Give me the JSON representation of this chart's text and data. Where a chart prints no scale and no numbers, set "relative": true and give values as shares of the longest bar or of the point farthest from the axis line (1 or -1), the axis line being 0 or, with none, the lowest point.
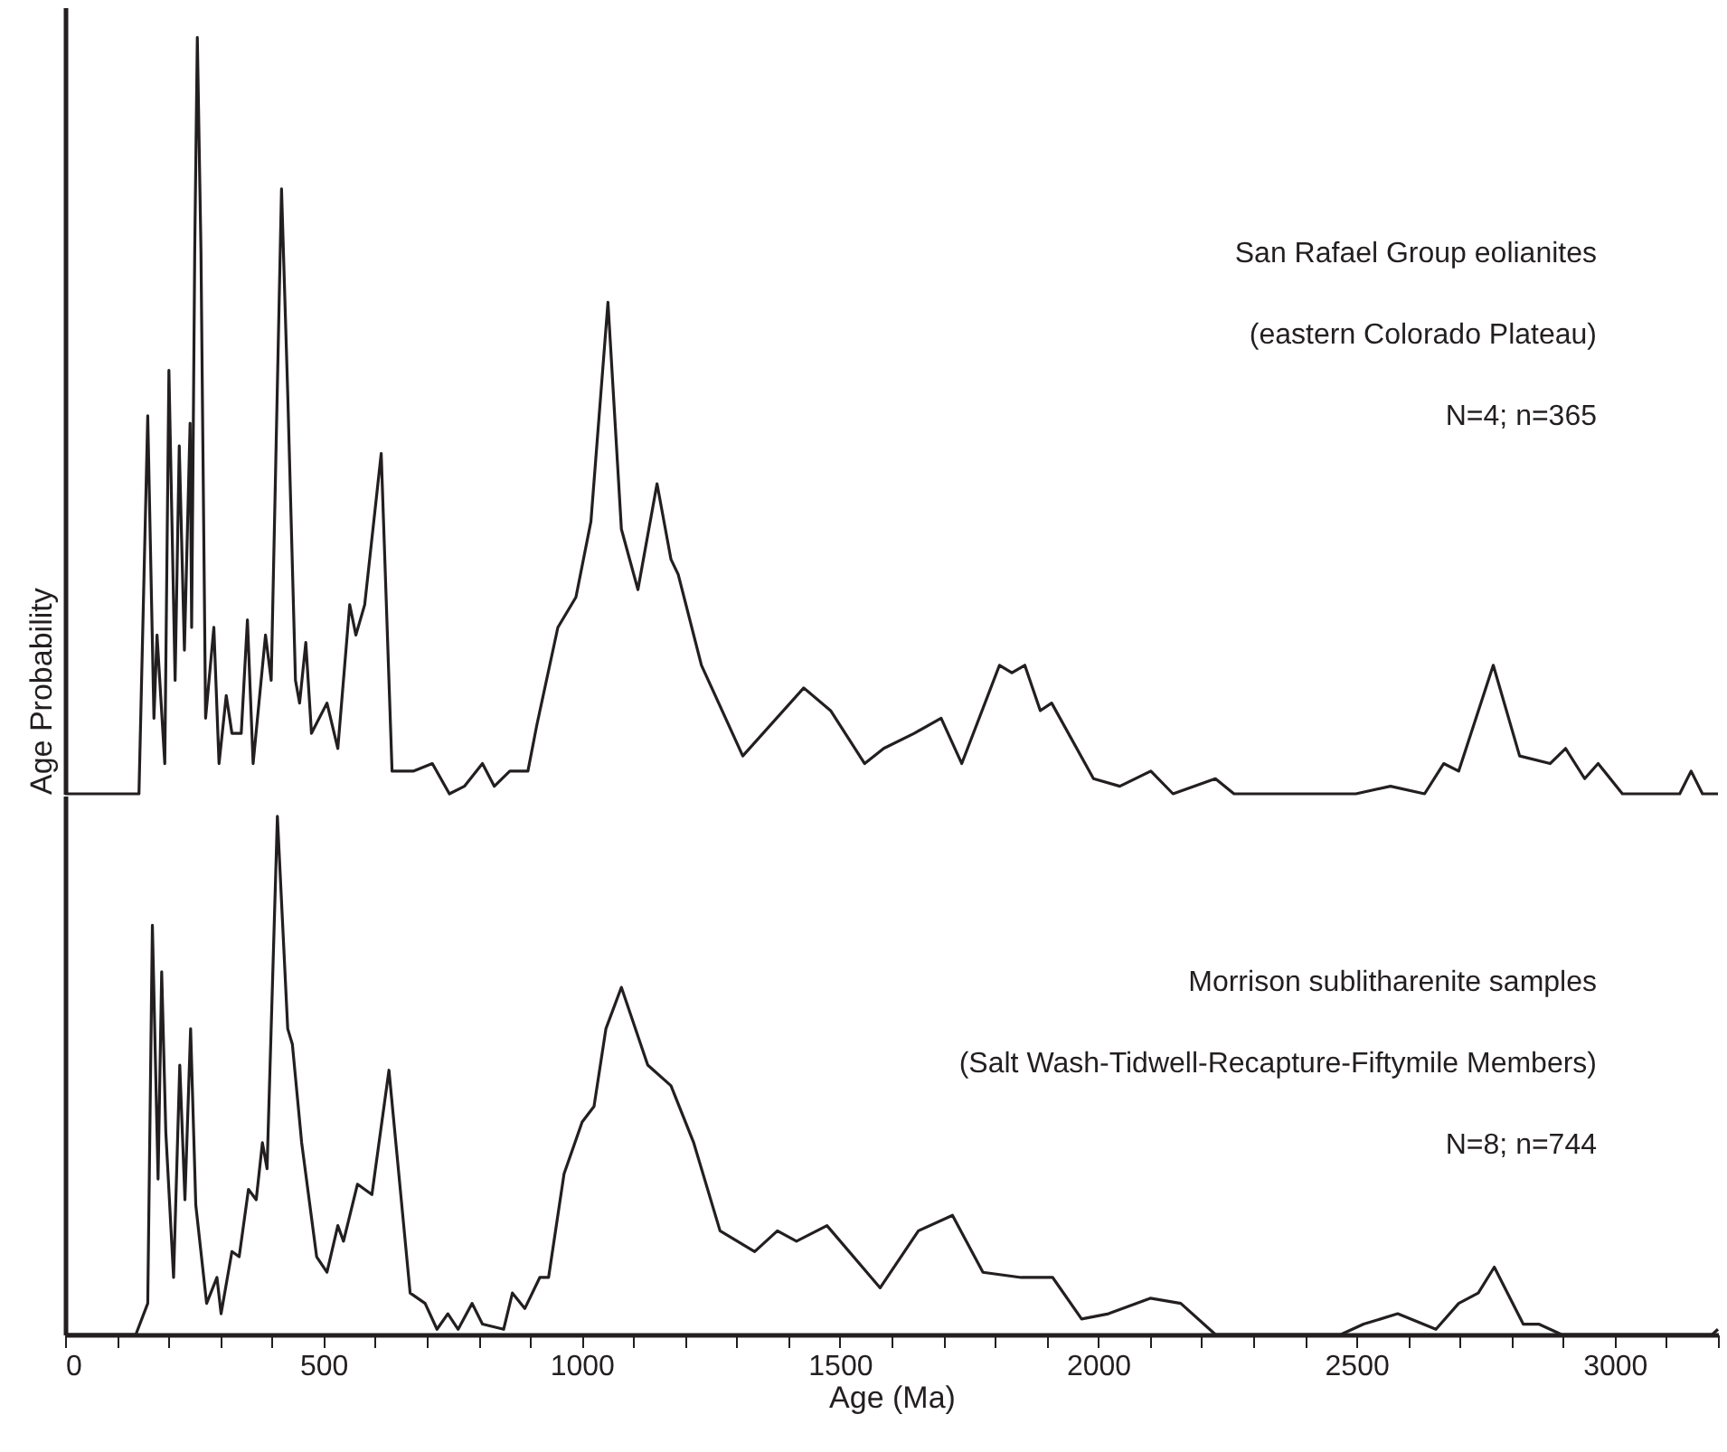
{
  "chart_data": [
    {
      "type": "line",
      "relative": true,
      "xlim": [
        0,
        3200
      ],
      "tick_labels": false,
      "ylabel": "Age Probability",
      "legend": false,
      "grid": false,
      "marker": "none",
      "line_style": "solid",
      "annotations": [
        "San Rafael Group eolianites",
        "(eastern Colorado Plateau)",
        "N=4; n=365"
      ],
      "x": [
        0,
        143,
        160,
        172,
        178,
        193,
        201,
        213,
        221,
        231,
        242,
        245,
        251,
        256,
        263,
        272,
        288,
        298,
        312,
        323,
        341,
        353,
        364,
        388,
        399,
        419,
        431,
        446,
        454,
        466,
        477,
        507,
        528,
        551,
        563,
        580,
        612,
        633,
        674,
        711,
        744,
        773,
        808,
        831,
        861,
        896,
        913,
        954,
        989,
        1018,
        1051,
        1077,
        1109,
        1146,
        1173,
        1187,
        1232,
        1312,
        1430,
        1482,
        1548,
        1585,
        1644,
        1696,
        1736,
        1809,
        1833,
        1858,
        1888,
        1910,
        1991,
        2042,
        2102,
        2145,
        2227,
        2263,
        2499,
        2566,
        2632,
        2669,
        2698,
        2765,
        2816,
        2875,
        2905,
        2942,
        2968,
        3015,
        3126,
        3148,
        3170,
        3200
      ],
      "series": [
        {
          "color": "#231f20",
          "values": [
            0,
            0,
            0.5,
            0.1,
            0.21,
            0.04,
            0.56,
            0.15,
            0.46,
            0.19,
            0.49,
            0.22,
            0.72,
            1.0,
            0.72,
            0.1,
            0.22,
            0.04,
            0.13,
            0.08,
            0.08,
            0.23,
            0.04,
            0.21,
            0.15,
            0.8,
            0.53,
            0.15,
            0.12,
            0.2,
            0.08,
            0.12,
            0.06,
            0.25,
            0.21,
            0.25,
            0.45,
            0.03,
            0.03,
            0.04,
            0.0,
            0.01,
            0.04,
            0.01,
            0.03,
            0.03,
            0.09,
            0.22,
            0.26,
            0.36,
            0.65,
            0.35,
            0.27,
            0.41,
            0.31,
            0.29,
            0.17,
            0.05,
            0.14,
            0.11,
            0.04,
            0.06,
            0.08,
            0.1,
            0.04,
            0.17,
            0.16,
            0.17,
            0.11,
            0.12,
            0.02,
            0.01,
            0.03,
            0.0,
            0.02,
            0.0,
            0.0,
            0.01,
            0.0,
            0.04,
            0.03,
            0.17,
            0.05,
            0.04,
            0.06,
            0.02,
            0.04,
            0.0,
            0.0,
            0.03,
            0.0,
            0.0
          ]
        }
      ]
    },
    {
      "type": "line",
      "relative": true,
      "xlim": [
        0,
        3200
      ],
      "tick_labels": "x",
      "xlabel": "Age  (Ma)",
      "legend": false,
      "grid": false,
      "marker": "none",
      "line_style": "solid",
      "xticks": [
        0,
        {
          "value": 100,
          "label": null
        },
        {
          "value": 200,
          "label": null
        },
        {
          "value": 300,
          "label": null
        },
        {
          "value": 400,
          "label": null
        },
        500,
        {
          "value": 600,
          "label": null
        },
        {
          "value": 700,
          "label": null
        },
        {
          "value": 800,
          "label": null
        },
        {
          "value": 900,
          "label": null
        },
        1000,
        {
          "value": 1100,
          "label": null
        },
        {
          "value": 1200,
          "label": null
        },
        {
          "value": 1300,
          "label": null
        },
        {
          "value": 1400,
          "label": null
        },
        1500,
        {
          "value": 1600,
          "label": null
        },
        {
          "value": 1700,
          "label": null
        },
        {
          "value": 1800,
          "label": null
        },
        {
          "value": 1900,
          "label": null
        },
        2000,
        {
          "value": 2100,
          "label": null
        },
        {
          "value": 2200,
          "label": null
        },
        {
          "value": 2300,
          "label": null
        },
        {
          "value": 2400,
          "label": null
        },
        2500,
        {
          "value": 2600,
          "label": null
        },
        {
          "value": 2700,
          "label": null
        },
        {
          "value": 2800,
          "label": null
        },
        {
          "value": 2900,
          "label": null
        },
        3000,
        {
          "value": 3100,
          "label": null
        },
        {
          "value": 3200,
          "label": null
        }
      ],
      "annotations": [
        "Morrison sublitharenite samples",
        "(Salt Wash-Tidwell-Recapture-Fiftymile Members)",
        "N=8; n=744"
      ],
      "x": [
        0,
        137,
        160,
        169,
        180,
        187,
        195,
        210,
        222,
        232,
        243,
        253,
        274,
        294,
        302,
        323,
        337,
        355,
        370,
        382,
        391,
        411,
        431,
        440,
        458,
        487,
        507,
        528,
        539,
        566,
        594,
        627,
        668,
        697,
        720,
        741,
        761,
        788,
        808,
        849,
        866,
        890,
        919,
        936,
        966,
        1001,
        1024,
        1047,
        1077,
        1128,
        1173,
        1217,
        1268,
        1335,
        1379,
        1416,
        1475,
        1578,
        1652,
        1718,
        1777,
        1851,
        1912,
        1968,
        2020,
        2101,
        2160,
        2227,
        2381,
        2470,
        2514,
        2580,
        2654,
        2698,
        2736,
        2767,
        2823,
        2853,
        2897,
        3189,
        3200
      ],
      "series": [
        {
          "color": "#231f20",
          "values": [
            0,
            0,
            0.06,
            0.79,
            0.3,
            0.7,
            0.39,
            0.11,
            0.52,
            0.26,
            0.59,
            0.25,
            0.06,
            0.11,
            0.04,
            0.16,
            0.15,
            0.28,
            0.26,
            0.37,
            0.32,
            1.0,
            0.59,
            0.56,
            0.37,
            0.15,
            0.12,
            0.21,
            0.18,
            0.29,
            0.27,
            0.51,
            0.08,
            0.06,
            0.01,
            0.04,
            0.01,
            0.06,
            0.02,
            0.01,
            0.08,
            0.05,
            0.11,
            0.11,
            0.31,
            0.41,
            0.44,
            0.59,
            0.67,
            0.52,
            0.48,
            0.37,
            0.2,
            0.16,
            0.2,
            0.18,
            0.21,
            0.09,
            0.2,
            0.23,
            0.12,
            0.11,
            0.11,
            0.03,
            0.04,
            0.07,
            0.06,
            0.0,
            0.0,
            0.0,
            0.02,
            0.04,
            0.01,
            0.06,
            0.08,
            0.13,
            0.02,
            0.02,
            0.0,
            0.0,
            0.01
          ]
        }
      ]
    }
  ]
}
